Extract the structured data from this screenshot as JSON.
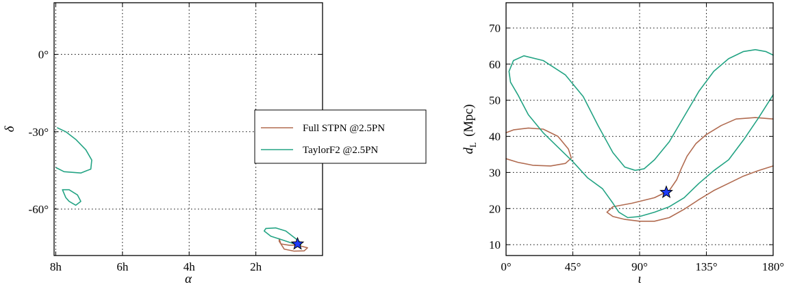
{
  "colors": {
    "full_stpn": "#b06a4f",
    "taylorf2": "#22a383",
    "star_fill": "#1e3cff",
    "star_stroke": "#000000"
  },
  "chart_data": [
    {
      "type": "line",
      "panel": "sky-localization",
      "xlabel": "α",
      "ylabel": "δ",
      "xlim": [
        8.05,
        0.0
      ],
      "ylim": [
        -78,
        20
      ],
      "x_unit": "hours (RA)",
      "y_unit": "degrees",
      "grid": true,
      "legend_placement": "right (spanning between panels)",
      "x_ticks": [
        8,
        6,
        4,
        2
      ],
      "x_tick_labels": [
        "8h",
        "6h",
        "4h",
        "2h"
      ],
      "y_ticks": [
        0,
        -30,
        -60
      ],
      "y_tick_labels": [
        "0°",
        "-30°",
        "-60°"
      ],
      "series": [
        {
          "name": "Full STPN @2.5PN",
          "color_key": "full_stpn",
          "contours": [
            [
              [
                1.3,
                -71.5
              ],
              [
                1.25,
                -73.5
              ],
              [
                1.0,
                -74.0
              ],
              [
                0.75,
                -74.0
              ],
              [
                0.45,
                -75.0
              ],
              [
                0.55,
                -76.2
              ],
              [
                0.85,
                -76.3
              ],
              [
                1.15,
                -75.5
              ],
              [
                1.3,
                -72.5
              ],
              [
                1.3,
                -71.5
              ]
            ]
          ]
        },
        {
          "name": "TaylorF2 @2.5PN",
          "color_key": "taylorf2",
          "contours": [
            [
              [
                7.95,
                -28.5
              ],
              [
                7.7,
                -30.0
              ],
              [
                7.4,
                -33.0
              ],
              [
                7.1,
                -37.0
              ],
              [
                6.92,
                -41.0
              ],
              [
                6.95,
                -44.5
              ],
              [
                7.25,
                -46.0
              ],
              [
                7.75,
                -45.5
              ],
              [
                7.98,
                -44.0
              ]
            ],
            [
              [
                7.8,
                -52.5
              ],
              [
                7.7,
                -55.5
              ],
              [
                7.6,
                -57.0
              ],
              [
                7.4,
                -58.5
              ],
              [
                7.25,
                -57.0
              ],
              [
                7.35,
                -54.5
              ],
              [
                7.6,
                -52.5
              ],
              [
                7.8,
                -52.5
              ]
            ],
            [
              [
                1.7,
                -67.5
              ],
              [
                1.75,
                -68.5
              ],
              [
                1.55,
                -70.5
              ],
              [
                1.2,
                -72.0
              ],
              [
                0.85,
                -73.5
              ],
              [
                0.65,
                -73.8
              ],
              [
                0.7,
                -72.5
              ],
              [
                0.9,
                -70.5
              ],
              [
                1.1,
                -68.5
              ],
              [
                1.4,
                -67.3
              ],
              [
                1.7,
                -67.5
              ]
            ]
          ]
        }
      ],
      "markers": [
        {
          "label": "injection",
          "x": 0.75,
          "y": -73.5,
          "shape": "star"
        }
      ]
    },
    {
      "type": "line",
      "panel": "inclination-distance",
      "xlabel": "ι",
      "ylabel": "d",
      "ylabel_subscript": "L",
      "ylabel_units": "(Mpc)",
      "xlim": [
        0,
        180
      ],
      "ylim": [
        7,
        77
      ],
      "x_unit": "degrees",
      "y_unit": "Mpc",
      "grid": true,
      "x_ticks": [
        0,
        45,
        90,
        135,
        180
      ],
      "x_tick_labels": [
        "0°",
        "45°",
        "90°",
        "135°",
        "180°"
      ],
      "y_ticks": [
        10,
        20,
        30,
        40,
        50,
        60,
        70
      ],
      "y_tick_labels": [
        "10",
        "20",
        "30",
        "40",
        "50",
        "60",
        "70"
      ],
      "series": [
        {
          "name": "Full STPN @2.5PN",
          "color_key": "full_stpn",
          "contours": [
            [
              [
                0,
                41.0
              ],
              [
                5,
                41.8
              ],
              [
                15,
                42.3
              ],
              [
                25,
                42.0
              ],
              [
                35,
                40.0
              ],
              [
                42,
                36.5
              ],
              [
                44,
                34.0
              ],
              [
                40,
                32.5
              ],
              [
                30,
                31.8
              ],
              [
                18,
                32.0
              ],
              [
                8,
                32.8
              ],
              [
                0,
                33.8
              ]
            ],
            [
              [
                180,
                44.8
              ],
              [
                168,
                45.2
              ],
              [
                155,
                44.8
              ],
              [
                145,
                43.0
              ],
              [
                135,
                40.5
              ],
              [
                128,
                38.0
              ],
              [
                122,
                34.5
              ],
              [
                118,
                31.0
              ],
              [
                115,
                28.0
              ],
              [
                110,
                25.0
              ],
              [
                100,
                23.0
              ],
              [
                85,
                21.5
              ],
              [
                72,
                20.5
              ],
              [
                68,
                19.0
              ],
              [
                72,
                17.8
              ],
              [
                80,
                17.0
              ],
              [
                90,
                16.5
              ],
              [
                100,
                16.5
              ],
              [
                110,
                17.5
              ],
              [
                120,
                19.8
              ],
              [
                130,
                22.5
              ],
              [
                140,
                25.0
              ],
              [
                150,
                27.0
              ],
              [
                160,
                29.0
              ],
              [
                170,
                30.5
              ],
              [
                180,
                31.8
              ]
            ]
          ]
        },
        {
          "name": "TaylorF2 @2.5PN",
          "color_key": "taylorf2",
          "contours": [
            [
              [
                180,
                51.5
              ],
              [
                170,
                45.0
              ],
              [
                160,
                39.0
              ],
              [
                150,
                33.5
              ],
              [
                140,
                30.5
              ],
              [
                130,
                27.0
              ],
              [
                120,
                23.0
              ],
              [
                110,
                20.5
              ],
              [
                100,
                19.0
              ],
              [
                90,
                17.8
              ],
              [
                82,
                17.5
              ],
              [
                76,
                19.0
              ],
              [
                72,
                21.5
              ],
              [
                65,
                25.5
              ],
              [
                55,
                28.5
              ],
              [
                45,
                33.0
              ],
              [
                35,
                37.0
              ],
              [
                25,
                41.0
              ],
              [
                15,
                46.0
              ],
              [
                8,
                51.5
              ],
              [
                3,
                55.0
              ],
              [
                2,
                58.0
              ],
              [
                5,
                61.0
              ],
              [
                12,
                62.3
              ],
              [
                25,
                61.0
              ],
              [
                40,
                57.0
              ],
              [
                52,
                51.0
              ],
              [
                62,
                43.0
              ],
              [
                72,
                35.5
              ],
              [
                80,
                31.5
              ],
              [
                87,
                30.6
              ],
              [
                93,
                31.0
              ],
              [
                100,
                33.5
              ],
              [
                110,
                38.5
              ],
              [
                120,
                45.5
              ],
              [
                130,
                52.5
              ],
              [
                140,
                58.0
              ],
              [
                150,
                61.5
              ],
              [
                160,
                63.5
              ],
              [
                168,
                64.0
              ],
              [
                175,
                63.5
              ],
              [
                180,
                62.5
              ]
            ]
          ]
        }
      ],
      "markers": [
        {
          "label": "injection",
          "x": 108,
          "y": 24.5,
          "shape": "star"
        }
      ]
    }
  ],
  "legend": {
    "items": [
      {
        "label": "Full STPN @2.5PN",
        "color_key": "full_stpn"
      },
      {
        "label": "TaylorF2 @2.5PN",
        "color_key": "taylorf2"
      }
    ]
  }
}
